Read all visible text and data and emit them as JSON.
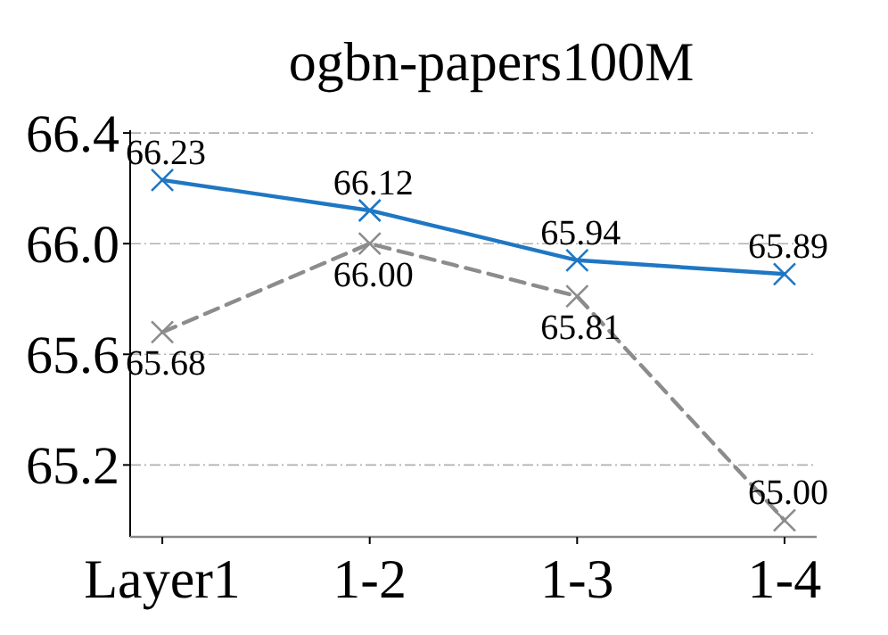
{
  "chart_data": {
    "type": "line",
    "title": "ogbn-papers100M",
    "categories": [
      "Layer1",
      "1-2",
      "1-3",
      "1-4"
    ],
    "series": [
      {
        "color": "#1f77c4",
        "values": [
          66.23,
          66.12,
          65.94,
          65.89
        ],
        "value_labels": [
          "66.23",
          "66.12",
          "65.94",
          "65.89"
        ],
        "line_style": "solid"
      },
      {
        "color": "#8c8c8c",
        "values": [
          65.68,
          66.0,
          65.81,
          65.0
        ],
        "value_labels": [
          "65.68",
          "66.00",
          "65.81",
          "65.00"
        ],
        "line_style": "dashed"
      }
    ],
    "ylim": [
      64.94,
      66.41
    ],
    "yticks": [
      {
        "value": 65.2,
        "label": "65.2"
      },
      {
        "value": 65.6,
        "label": "65.6"
      },
      {
        "value": 66.0,
        "label": "66.0"
      },
      {
        "value": 66.4,
        "label": "66.4"
      }
    ],
    "grid": "y",
    "marker": "cross"
  }
}
